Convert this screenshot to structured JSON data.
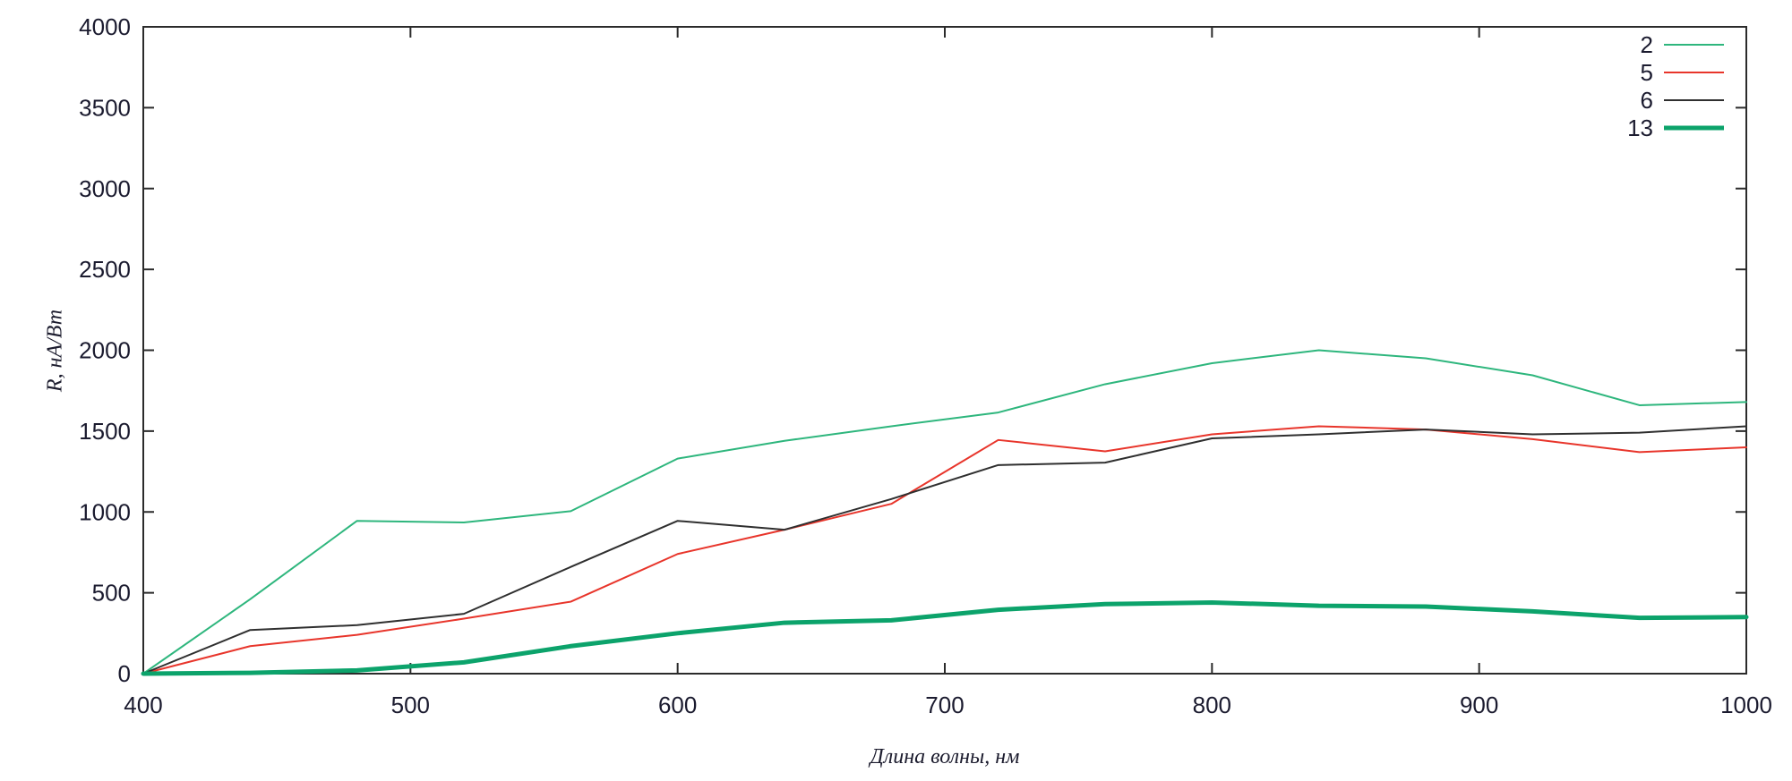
{
  "chart_data": {
    "type": "line",
    "title": "",
    "xlabel": "Длина волны, нм",
    "ylabel": "R, нА/Вт",
    "xlim": [
      400,
      1000
    ],
    "ylim": [
      0,
      4000
    ],
    "xticks": [
      400,
      500,
      600,
      700,
      800,
      900,
      1000
    ],
    "yticks": [
      0,
      500,
      1000,
      1500,
      2000,
      2500,
      3000,
      3500,
      4000
    ],
    "grid": false,
    "legend_position": "top-right-inside",
    "border_color": "#2b2b2b",
    "tick_label_color": "#1b1b2f",
    "x": [
      400,
      440,
      480,
      520,
      560,
      600,
      640,
      680,
      720,
      760,
      800,
      840,
      880,
      920,
      960,
      1000
    ],
    "series": [
      {
        "name": "2",
        "color": "#2eb67d",
        "line_width": 2,
        "values": [
          0,
          460,
          945,
          935,
          1005,
          1330,
          1440,
          1530,
          1615,
          1790,
          1920,
          2000,
          1950,
          1845,
          1660,
          1680
        ]
      },
      {
        "name": "5",
        "color": "#e8352b",
        "line_width": 2,
        "values": [
          0,
          170,
          240,
          340,
          445,
          740,
          890,
          1050,
          1445,
          1375,
          1480,
          1530,
          1510,
          1450,
          1370,
          1400
        ]
      },
      {
        "name": "6",
        "color": "#2f2f2f",
        "line_width": 2,
        "values": [
          0,
          270,
          300,
          370,
          660,
          945,
          890,
          1080,
          1290,
          1305,
          1455,
          1480,
          1510,
          1480,
          1490,
          1530
        ]
      },
      {
        "name": "13",
        "color": "#0ca36b",
        "line_width": 5,
        "values": [
          0,
          5,
          20,
          70,
          170,
          250,
          315,
          330,
          395,
          430,
          440,
          420,
          415,
          385,
          345,
          350
        ]
      }
    ]
  }
}
